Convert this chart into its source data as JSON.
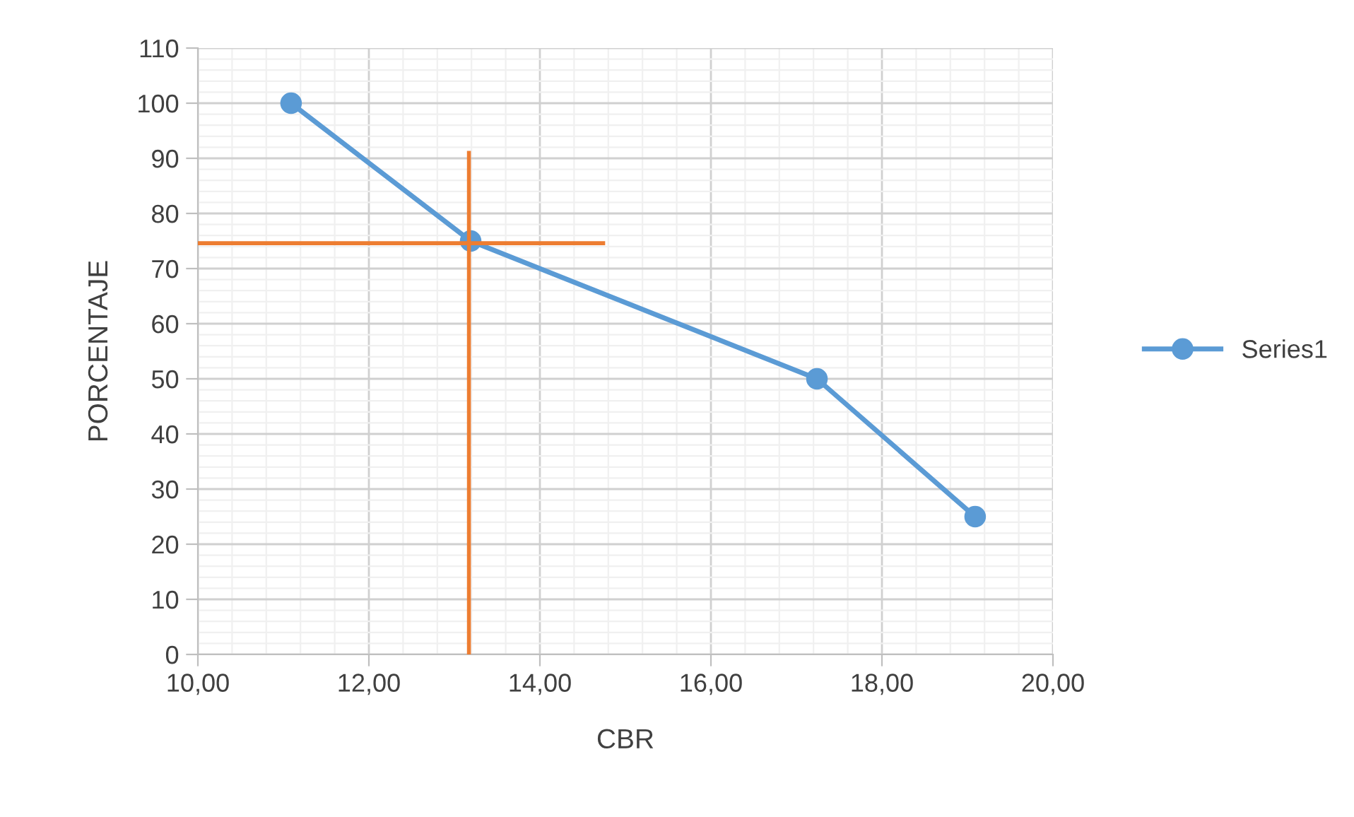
{
  "chart_data": {
    "type": "line",
    "xlabel": "CBR",
    "ylabel": "PORCENTAJE",
    "xlim": [
      10,
      20
    ],
    "xticks": [
      {
        "value": 10,
        "label": "10,00"
      },
      {
        "value": 12,
        "label": "12,00"
      },
      {
        "value": 14,
        "label": "14,00"
      },
      {
        "value": 16,
        "label": "16,00"
      },
      {
        "value": 18,
        "label": "18,00"
      },
      {
        "value": 20,
        "label": "20,00"
      }
    ],
    "ylim": [
      0,
      110
    ],
    "yticks": [
      0,
      10,
      20,
      30,
      40,
      50,
      60,
      70,
      80,
      90,
      100,
      110
    ],
    "grid": true,
    "legend": "right",
    "line_style": "solid",
    "series": [
      {
        "name": "Series1",
        "color": "#5b9bd5",
        "marker": "circle",
        "x": [
          11.09,
          13.19,
          17.24,
          19.09
        ],
        "values": [
          100,
          75,
          50,
          25
        ]
      },
      {
        "color": "#ed7d31",
        "marker": "none",
        "x": [
          10,
          14.74
        ],
        "values": [
          74.6,
          74.6
        ]
      },
      {
        "color": "#ed7d31",
        "marker": "none",
        "x": [
          13.17,
          13.17
        ],
        "values": [
          0,
          91
        ]
      }
    ]
  }
}
